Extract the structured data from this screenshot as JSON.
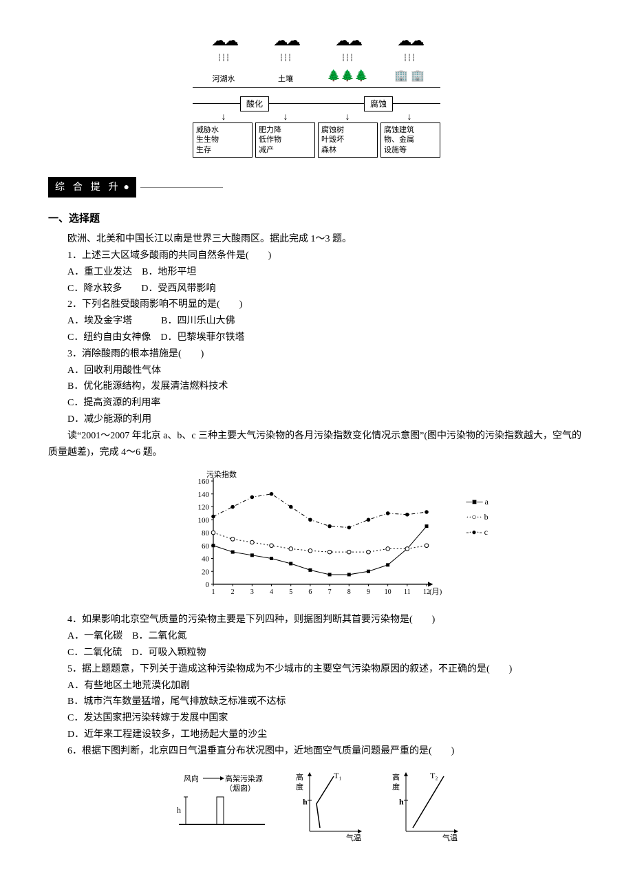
{
  "top_diagram": {
    "ground_labels": [
      "河湖水",
      "土壤",
      "",
      ""
    ],
    "process_labels": [
      "酸化",
      "腐蚀"
    ],
    "effects": [
      "威胁水\n生生物\n生存",
      "肥力降\n低作物\n减产",
      "腐蚀树\n叶毁坏\n森林",
      "腐蚀建筑\n物、金属\n设施等"
    ]
  },
  "section_tag": "综 合 提 升",
  "section1_head": "一、选择题",
  "intro1": "欧洲、北美和中国长江以南是世界三大酸雨区。据此完成 1～3 题。",
  "q1": {
    "stem": "1．上述三大区域多酸雨的共同自然条件是(　　)",
    "opts": [
      "A．重工业发达　B．地形平坦",
      "C．降水较多　　D．受西风带影响"
    ]
  },
  "q2": {
    "stem": "2．下列名胜受酸雨影响不明显的是(　　)",
    "opts": [
      "A．埃及金字塔　　　B．四川乐山大佛",
      "C．纽约自由女神像　D．巴黎埃菲尔铁塔"
    ]
  },
  "q3": {
    "stem": "3．消除酸雨的根本措施是(　　)",
    "opts": [
      "A．回收利用酸性气体",
      "B．优化能源结构，发展清洁燃料技术",
      "C．提高资源的利用率",
      "D．减少能源的利用"
    ]
  },
  "intro2": "　　读“2001～2007 年北京 a、b、c 三种主要大气污染物的各月污染指数变化情况示意图”(图中污染物的污染指数越大，空气的质量越差)，完成 4～6 题。",
  "chart": {
    "ylabel": "污染指数",
    "xlabel": "(月)",
    "yticks": [
      0,
      20,
      40,
      60,
      80,
      100,
      120,
      140,
      160
    ],
    "xticks": [
      1,
      2,
      3,
      4,
      5,
      6,
      7,
      8,
      9,
      10,
      11,
      12
    ],
    "series": {
      "a": {
        "label": "a",
        "marker": "■",
        "values": [
          60,
          50,
          45,
          40,
          32,
          22,
          15,
          15,
          20,
          30,
          55,
          90
        ]
      },
      "b": {
        "label": "b",
        "marker": "○",
        "values": [
          80,
          70,
          65,
          60,
          55,
          52,
          50,
          50,
          50,
          55,
          55,
          60
        ]
      },
      "c": {
        "label": "c",
        "marker": "●",
        "values": [
          105,
          120,
          135,
          140,
          120,
          100,
          90,
          88,
          100,
          110,
          108,
          112
        ]
      }
    },
    "colors": {
      "axis": "#000",
      "a": "#000",
      "b": "#000",
      "c": "#000"
    }
  },
  "q4": {
    "stem": "4．如果影响北京空气质量的污染物主要是下列四种，则据图判断其首要污染物是(　　)",
    "opts": [
      "A．一氧化碳　B．二氧化氮",
      "C．二氧化硫　D．可吸入颗粒物"
    ]
  },
  "q5": {
    "stem": "　　5．据上题题意，下列关于造成这种污染物成为不少城市的主要空气污染物原因的叙述，不正确的是(　　)",
    "opts": [
      "A．有些地区土地荒漠化加剧",
      "B．城市汽车数量猛增，尾气排放缺乏标准或不达标",
      "C．发达国家把污染转嫁于发展中国家",
      "D．近年来工程建设较多，工地扬起大量的沙尘"
    ]
  },
  "q6": {
    "stem": "　　6．根据下图判断，北京四日气温垂直分布状况图中，近地面空气质量问题最严重的是(　　)"
  },
  "bottom": {
    "wind": "风向",
    "source": "高架污染源\n（烟囱）",
    "h": "h",
    "ylab": "高\n度",
    "t1": "T₁",
    "t2": "T₂",
    "xlab": "气温"
  }
}
